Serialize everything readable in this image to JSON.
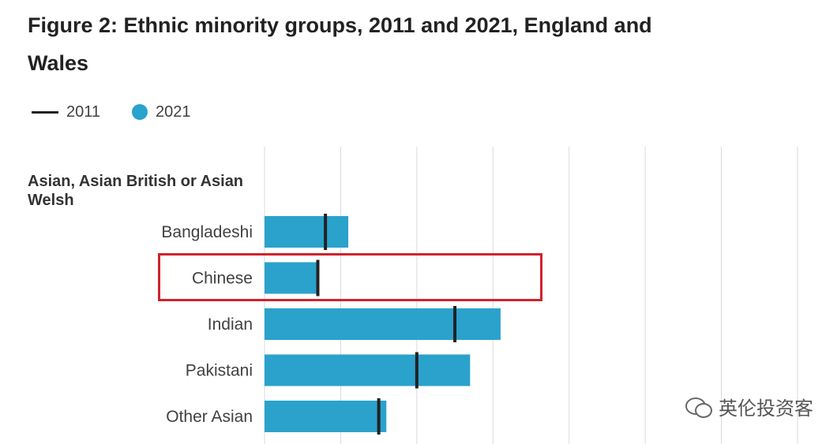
{
  "title": "Figure 2: Ethnic minority groups, 2011 and 2021, England and Wales",
  "legend": {
    "items": [
      {
        "label": "2011",
        "marker": "line",
        "color": "#222222"
      },
      {
        "label": "2021",
        "marker": "dot",
        "color": "#2aa2cc"
      }
    ]
  },
  "group_label": "Asian, Asian British or Asian Welsh",
  "highlight": {
    "category": "Chinese",
    "color": "#d0232d"
  },
  "watermark": {
    "text": "英伦投资客",
    "icon": "wechat-icon"
  },
  "chart_data": {
    "type": "bar",
    "orientation": "horizontal",
    "group": "Asian, Asian British or Asian Welsh",
    "categories": [
      "Bangladeshi",
      "Chinese",
      "Indian",
      "Pakistani",
      "Other Asian"
    ],
    "series": [
      {
        "name": "2021",
        "marker": "bar",
        "color": "#2aa2cc",
        "values": [
          1.1,
          0.7,
          3.1,
          2.7,
          1.6
        ]
      },
      {
        "name": "2011",
        "marker": "line",
        "color": "#222222",
        "values": [
          0.8,
          0.7,
          2.5,
          2.0,
          1.5
        ]
      }
    ],
    "xlim": [
      0,
      7
    ],
    "grid": true,
    "legend_position": "top-left"
  }
}
